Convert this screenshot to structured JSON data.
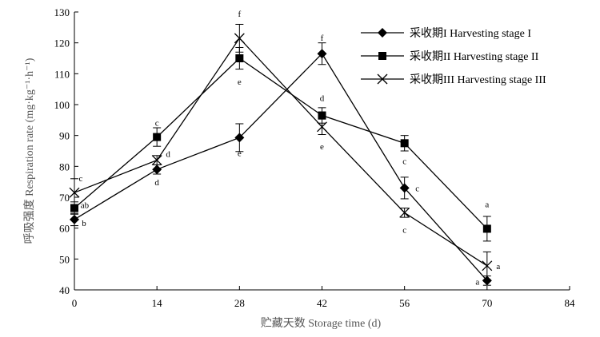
{
  "chart_data": {
    "type": "line",
    "xlabel": "贮藏天数 Storage time (d)",
    "ylabel": "呼吸强度 Respiration rate (mg·kg⁻¹·h⁻¹)",
    "xlim": [
      0,
      84
    ],
    "ylim": [
      40,
      130
    ],
    "xticks": [
      0,
      14,
      28,
      42,
      56,
      70,
      84
    ],
    "yticks": [
      40,
      50,
      60,
      70,
      80,
      90,
      100,
      110,
      120,
      130
    ],
    "grid": false,
    "legend_position": "top-right",
    "x": [
      0,
      14,
      28,
      42,
      56,
      70
    ],
    "series": [
      {
        "name": "采收期I Harvesting stage I",
        "marker": "diamond",
        "values": [
          62.8,
          79,
          89.3,
          116.5,
          73,
          43
        ],
        "errors": [
          2,
          1.5,
          4.5,
          3.5,
          3.5,
          1.5
        ],
        "labels": [
          "b",
          "d",
          "e",
          "f",
          "c",
          "a"
        ]
      },
      {
        "name": "采收期II Harvesting stage II",
        "marker": "square",
        "values": [
          66.5,
          89.5,
          115,
          96.5,
          87.5,
          59.8
        ],
        "errors": [
          2,
          3,
          3.5,
          2.5,
          2.5,
          4
        ],
        "labels": [
          "ab",
          "c",
          "e",
          "d",
          "c",
          "a"
        ]
      },
      {
        "name": "采收期III Harvesting stage III",
        "marker": "x",
        "values": [
          71.5,
          82,
          121.5,
          92.8,
          65,
          47.8
        ],
        "errors": [
          4.5,
          1.5,
          4.5,
          2.5,
          1.5,
          4.5
        ],
        "labels": [
          "c",
          "d",
          "f",
          "e",
          "c",
          "a"
        ]
      }
    ]
  }
}
